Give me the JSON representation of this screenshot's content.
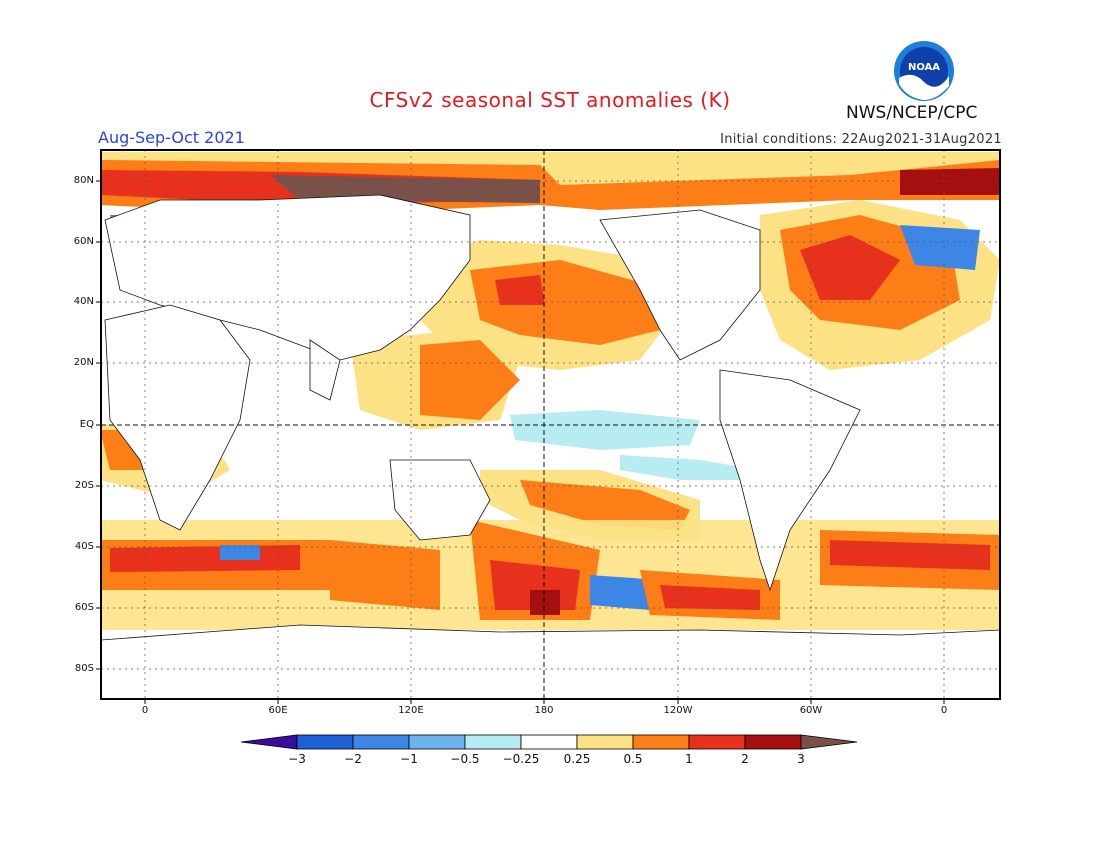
{
  "title": "CFSv2 seasonal SST anomalies (K)",
  "period": "Aug-Sep-Oct 2021",
  "initial_conditions": "Initial conditions: 22Aug2021-31Aug2021",
  "agency": "NWS/NCEP/CPC",
  "logo_text": "NOAA",
  "map": {
    "lat_labels": [
      "80N",
      "60N",
      "40N",
      "20N",
      "EQ",
      "20S",
      "40S",
      "60S",
      "80S"
    ],
    "lon_labels": [
      "0",
      "60E",
      "120E",
      "180",
      "120W",
      "60W",
      "0"
    ]
  },
  "colorbar": {
    "labels": [
      "−3",
      "−2",
      "−1",
      "−0.5",
      "−0.25",
      "0.25",
      "0.5",
      "1",
      "2",
      "3"
    ],
    "colors": [
      "#3a0d9c",
      "#1f5fd6",
      "#3d86e6",
      "#6fb2f0",
      "#b6ecf2",
      "#ffffff",
      "#fde285",
      "#fd7d16",
      "#e8311d",
      "#a50f0f",
      "#7a5148"
    ]
  }
}
